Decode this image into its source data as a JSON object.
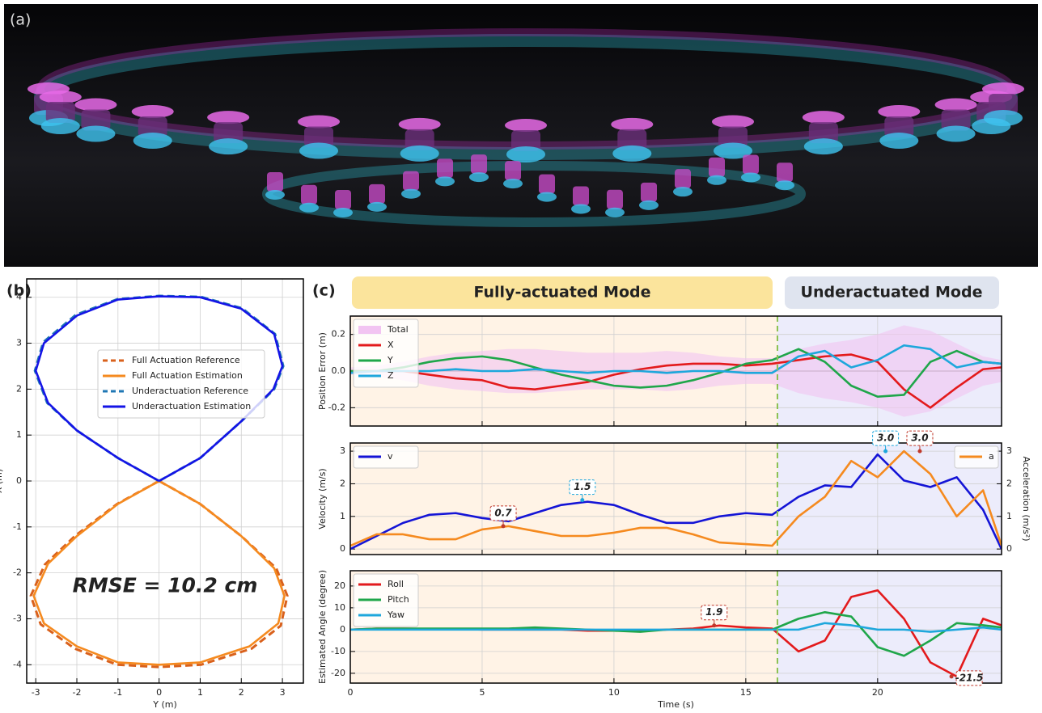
{
  "panels": [
    "(a)",
    "(b)",
    "(c)"
  ],
  "modes": [
    "Fully-actuated Mode",
    "Underactuated Mode"
  ],
  "chart_data": [
    {
      "type": "line",
      "xlabel": "Y (m)",
      "ylabel": "X (m)",
      "annotation": "RMSE = 10.2 cm",
      "xlim": [
        -3.22,
        3.51
      ],
      "ylim": [
        -4.4,
        4.4
      ],
      "xticks": [
        -3,
        -2,
        -1,
        0,
        1,
        2,
        3
      ],
      "yticks": [
        -4,
        -3,
        -2,
        -1,
        0,
        1,
        2,
        3,
        4
      ],
      "grid": true,
      "legend": "center",
      "series": [
        {
          "name": "Full Actuation Reference",
          "color": "#d9611c",
          "dash": true,
          "x": [
            0,
            1,
            2,
            2.85,
            3.12,
            2.96,
            2.25,
            1.02,
            0,
            -1.02,
            -2.05,
            -2.88,
            -3.12,
            -2.78,
            -2.05,
            -1.02,
            0
          ],
          "values": [
            0,
            -0.5,
            -1.2,
            -1.9,
            -2.5,
            -3.15,
            -3.65,
            -4.0,
            -4.05,
            -4.0,
            -3.65,
            -3.12,
            -2.5,
            -1.82,
            -1.2,
            -0.5,
            0
          ]
        },
        {
          "name": "Full Actuation Estimation",
          "color": "#f58a1f",
          "dash": false,
          "x": [
            0,
            1,
            2,
            2.8,
            3.05,
            2.9,
            2.2,
            1,
            0,
            -1,
            -2,
            -2.8,
            -3.05,
            -2.7,
            -2,
            -1,
            0
          ],
          "values": [
            0,
            -0.5,
            -1.2,
            -1.9,
            -2.5,
            -3.1,
            -3.6,
            -3.95,
            -4.0,
            -3.95,
            -3.6,
            -3.1,
            -2.5,
            -1.8,
            -1.2,
            -0.5,
            0
          ]
        },
        {
          "name": "Underactuation Reference",
          "color": "#1f77b4",
          "dash": true,
          "x": [
            0,
            1,
            2,
            2.8,
            3.02,
            2.82,
            2.02,
            1.01,
            0,
            -1.01,
            -2.02,
            -2.82,
            -3.02,
            -2.72,
            -2,
            -1,
            0
          ],
          "values": [
            0,
            0.5,
            1.3,
            2.0,
            2.5,
            3.2,
            3.76,
            4.01,
            4.03,
            3.96,
            3.62,
            3.02,
            2.4,
            1.7,
            1.1,
            0.5,
            0
          ]
        },
        {
          "name": "Underactuation Estimation",
          "color": "#1414e6",
          "dash": false,
          "x": [
            0,
            1,
            2,
            2.78,
            3,
            2.8,
            2,
            1,
            0,
            -1,
            -2,
            -2.8,
            -3,
            -2.7,
            -2,
            -1,
            0
          ],
          "values": [
            0,
            0.5,
            1.3,
            2.0,
            2.5,
            3.2,
            3.75,
            4.0,
            4.02,
            3.95,
            3.6,
            3.0,
            2.4,
            1.7,
            1.1,
            0.5,
            0
          ]
        }
      ]
    },
    {
      "type": "line",
      "ylabel": "Position Error (m)",
      "mode_switch": 16.2,
      "x": [
        0,
        1,
        2,
        3,
        4,
        5,
        6,
        7,
        8,
        9,
        10,
        11,
        12,
        13,
        14,
        15,
        16,
        17,
        18,
        19,
        20,
        21,
        22,
        23,
        24,
        24.7
      ],
      "xlim": [
        0,
        24.7
      ],
      "ylim": [
        -0.3,
        0.3
      ],
      "xticks": [
        0,
        5,
        10,
        15,
        20
      ],
      "yticks": [
        -0.2,
        {
          "value": 0,
          "label": "0.0"
        },
        0.2
      ],
      "grid": true,
      "legend": "upper left",
      "series": [
        {
          "name": "Total",
          "color": "#f2c4f2",
          "band": true,
          "values": [
            0.02,
            0.03,
            0.05,
            0.08,
            0.1,
            0.11,
            0.12,
            0.12,
            0.11,
            0.1,
            0.1,
            0.1,
            0.11,
            0.1,
            0.08,
            0.07,
            0.07,
            0.12,
            0.15,
            0.17,
            0.2,
            0.25,
            0.22,
            0.15,
            0.08,
            0.06
          ]
        },
        {
          "name": "X",
          "color": "#e31a1c",
          "values": [
            0,
            0,
            0,
            -0.02,
            -0.04,
            -0.05,
            -0.09,
            -0.1,
            -0.08,
            -0.06,
            -0.02,
            0.01,
            0.03,
            0.04,
            0.04,
            0.03,
            0.04,
            0.06,
            0.08,
            0.09,
            0.05,
            -0.1,
            -0.2,
            -0.09,
            0.01,
            0.02
          ]
        },
        {
          "name": "Y",
          "color": "#1fa64a",
          "values": [
            0,
            0,
            0.02,
            0.05,
            0.07,
            0.08,
            0.06,
            0.02,
            -0.02,
            -0.05,
            -0.08,
            -0.09,
            -0.08,
            -0.05,
            -0.01,
            0.04,
            0.06,
            0.12,
            0.05,
            -0.08,
            -0.14,
            -0.13,
            0.05,
            0.11,
            0.05,
            0.04
          ]
        },
        {
          "name": "Z",
          "color": "#1ea7dc",
          "values": [
            -0.01,
            0,
            0,
            0,
            0.01,
            0,
            0,
            0.01,
            0,
            -0.01,
            0,
            0,
            -0.01,
            0,
            0,
            -0.01,
            -0.01,
            0.08,
            0.11,
            0.02,
            0.06,
            0.14,
            0.12,
            0.02,
            0.05,
            0.04
          ]
        }
      ]
    },
    {
      "type": "line",
      "ylabel": "Velocity (m/s)",
      "y2label": "Acceleration (m/s²)",
      "mode_switch": 16.2,
      "x": [
        0,
        1,
        2,
        3,
        4,
        5,
        6,
        7,
        8,
        9,
        10,
        11,
        12,
        13,
        14,
        15,
        16,
        17,
        18,
        19,
        20,
        21,
        22,
        23,
        24,
        24.7
      ],
      "xlim": [
        0,
        24.7
      ],
      "ylim": [
        -0.17,
        3.25
      ],
      "y2lim": [
        -0.17,
        3.25
      ],
      "xticks": [
        0,
        5,
        10,
        15,
        20
      ],
      "yticks": [
        0,
        1,
        2,
        3
      ],
      "y2ticks": [
        0,
        1,
        2,
        3
      ],
      "grid": true,
      "legend": "upper left",
      "series": [
        {
          "name": "v",
          "color": "#1414d6",
          "values": [
            0,
            0.4,
            0.8,
            1.05,
            1.1,
            0.95,
            0.85,
            1.1,
            1.35,
            1.45,
            1.35,
            1.05,
            0.8,
            0.8,
            1.0,
            1.1,
            1.05,
            1.6,
            1.95,
            1.9,
            2.9,
            2.1,
            1.9,
            2.2,
            1.2,
            0
          ]
        },
        {
          "name": "a",
          "color": "#f58a1f",
          "axis": "y2",
          "values": [
            0.1,
            0.45,
            0.45,
            0.3,
            0.3,
            0.6,
            0.7,
            0.55,
            0.4,
            0.4,
            0.5,
            0.65,
            0.65,
            0.45,
            0.2,
            0.15,
            0.1,
            1.0,
            1.6,
            2.7,
            2.2,
            3.0,
            2.3,
            1.0,
            1.8,
            0.1
          ]
        }
      ],
      "annotations": [
        {
          "x": 5.8,
          "value": 0.7,
          "color": "#c0392b"
        },
        {
          "x": 8.8,
          "value": 1.5,
          "color": "#1ea7dc"
        },
        {
          "x": 20.3,
          "value": 3,
          "label": "3.0",
          "color": "#1ea7dc"
        },
        {
          "x": 21.6,
          "value": 3,
          "label": "3.0",
          "color": "#c0392b"
        }
      ]
    },
    {
      "type": "line",
      "xlabel": "Time (s)",
      "ylabel": "Estimated Angle (degree)",
      "mode_switch": 16.2,
      "x": [
        0,
        1,
        2,
        3,
        4,
        5,
        6,
        7,
        8,
        9,
        10,
        11,
        12,
        13,
        14,
        15,
        16,
        17,
        18,
        19,
        20,
        21,
        22,
        23,
        24,
        24.7
      ],
      "xlim": [
        0,
        24.7
      ],
      "ylim": [
        -24.5,
        27
      ],
      "xticks": [
        0,
        5,
        10,
        15,
        20
      ],
      "yticks": [
        -20,
        -10,
        0,
        10,
        20
      ],
      "grid": true,
      "legend": "upper left",
      "series": [
        {
          "name": "Roll",
          "color": "#e31a1c",
          "values": [
            0,
            0.5,
            0.5,
            0.3,
            0.3,
            0,
            0,
            0,
            0,
            -0.5,
            -0.5,
            -0.5,
            0,
            0.5,
            1.9,
            1,
            0.5,
            -10,
            -5,
            15,
            18,
            5,
            -15,
            -21.5,
            5,
            2
          ]
        },
        {
          "name": "Pitch",
          "color": "#1fa64a",
          "values": [
            0,
            0.5,
            0.5,
            0.5,
            0.5,
            0.5,
            0.5,
            1,
            0.5,
            0,
            -0.5,
            -1,
            0,
            0,
            0,
            0,
            0,
            5,
            8,
            6,
            -8,
            -12,
            -5,
            3,
            2,
            1
          ]
        },
        {
          "name": "Yaw",
          "color": "#1ea7dc",
          "values": [
            0,
            0,
            0,
            0,
            0,
            0,
            0,
            0,
            0,
            0,
            0,
            0,
            0,
            0,
            0,
            0,
            0,
            0,
            3,
            2,
            0,
            0,
            -1,
            0,
            1,
            0
          ]
        }
      ],
      "annotations": [
        {
          "x": 13.8,
          "value": 1.9,
          "color": "#c0392b"
        },
        {
          "x": 22.8,
          "value": -21.5,
          "color": "#c0392b"
        }
      ]
    }
  ]
}
